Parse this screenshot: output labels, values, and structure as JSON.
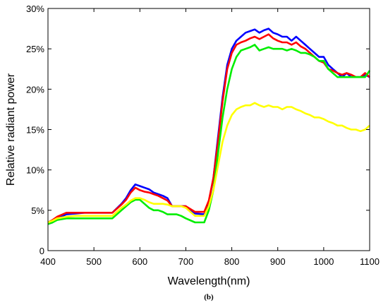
{
  "chart_data": {
    "type": "line",
    "xlabel": "Wavelength(nm)",
    "ylabel": "Relative radiant power",
    "caption": "(b)",
    "xlim": [
      400,
      1100
    ],
    "ylim": [
      0,
      30
    ],
    "xticks": [
      "400",
      "500",
      "600",
      "700",
      "800",
      "900",
      "1000",
      "1100"
    ],
    "yticks": [
      "0",
      "5%",
      "10%",
      "15%",
      "20%",
      "25%",
      "30%"
    ],
    "grid": false,
    "legend": "none",
    "series": [
      {
        "color": "#0000ff",
        "x": [
          400,
          410,
          420,
          440,
          460,
          480,
          500,
          520,
          540,
          560,
          570,
          580,
          590,
          600,
          610,
          620,
          630,
          640,
          650,
          660,
          670,
          680,
          690,
          700,
          720,
          740,
          750,
          760,
          770,
          780,
          790,
          800,
          810,
          820,
          830,
          840,
          850,
          860,
          870,
          880,
          890,
          900,
          910,
          920,
          930,
          940,
          950,
          960,
          970,
          980,
          990,
          1000,
          1010,
          1020,
          1030,
          1040,
          1050,
          1060,
          1070,
          1080,
          1090,
          1100
        ],
        "y": [
          3.3,
          3.5,
          4.0,
          4.5,
          4.6,
          4.7,
          4.7,
          4.7,
          4.7,
          5.8,
          6.5,
          7.5,
          8.2,
          8.0,
          7.8,
          7.6,
          7.2,
          7.0,
          6.8,
          6.5,
          5.5,
          5.5,
          5.5,
          5.5,
          4.6,
          4.5,
          6.0,
          9.0,
          14.0,
          19.0,
          23.0,
          25.0,
          26.0,
          26.5,
          27.0,
          27.2,
          27.4,
          27.0,
          27.3,
          27.5,
          27.0,
          26.8,
          26.5,
          26.5,
          26.0,
          26.5,
          26.0,
          25.5,
          25.0,
          24.5,
          24.0,
          24.0,
          23.0,
          22.5,
          22.0,
          21.5,
          22.0,
          21.5,
          21.5,
          21.5,
          21.8,
          21.5
        ]
      },
      {
        "color": "#ff0000",
        "x": [
          400,
          410,
          420,
          440,
          460,
          480,
          500,
          520,
          540,
          560,
          570,
          580,
          590,
          600,
          610,
          620,
          630,
          640,
          650,
          660,
          670,
          680,
          690,
          700,
          720,
          740,
          750,
          760,
          770,
          780,
          790,
          800,
          810,
          820,
          830,
          840,
          850,
          860,
          870,
          880,
          890,
          900,
          910,
          920,
          930,
          940,
          950,
          960,
          970,
          980,
          990,
          1000,
          1010,
          1020,
          1030,
          1040,
          1050,
          1060,
          1070,
          1080,
          1090,
          1100
        ],
        "y": [
          3.5,
          3.8,
          4.2,
          4.7,
          4.7,
          4.7,
          4.7,
          4.7,
          4.7,
          5.7,
          6.3,
          7.2,
          7.8,
          7.5,
          7.3,
          7.2,
          7.0,
          6.8,
          6.5,
          6.2,
          5.5,
          5.5,
          5.5,
          5.5,
          4.8,
          4.8,
          6.2,
          9.0,
          13.5,
          18.5,
          22.5,
          24.5,
          25.5,
          25.8,
          26.0,
          26.3,
          26.5,
          26.2,
          26.5,
          26.8,
          26.3,
          26.0,
          25.8,
          25.8,
          25.5,
          25.8,
          25.3,
          25.0,
          24.5,
          24.0,
          23.5,
          23.3,
          22.5,
          22.3,
          22.0,
          21.8,
          22.0,
          21.8,
          21.5,
          21.5,
          22.0,
          21.5
        ]
      },
      {
        "color": "#00ee00",
        "x": [
          400,
          410,
          420,
          440,
          460,
          480,
          500,
          520,
          540,
          560,
          570,
          580,
          590,
          600,
          610,
          620,
          630,
          640,
          650,
          660,
          670,
          680,
          690,
          700,
          720,
          740,
          750,
          760,
          770,
          780,
          790,
          800,
          810,
          820,
          830,
          840,
          850,
          860,
          870,
          880,
          890,
          900,
          910,
          920,
          930,
          940,
          950,
          960,
          970,
          980,
          990,
          1000,
          1010,
          1020,
          1030,
          1040,
          1050,
          1060,
          1070,
          1080,
          1090,
          1100
        ],
        "y": [
          3.3,
          3.5,
          3.8,
          4.0,
          4.0,
          4.0,
          4.0,
          4.0,
          4.0,
          5.0,
          5.5,
          6.0,
          6.3,
          6.3,
          5.8,
          5.3,
          5.0,
          5.0,
          4.8,
          4.5,
          4.5,
          4.5,
          4.3,
          4.0,
          3.5,
          3.5,
          5.0,
          7.5,
          12.0,
          16.5,
          20.0,
          22.5,
          24.0,
          24.8,
          25.0,
          25.2,
          25.5,
          24.8,
          25.0,
          25.2,
          25.0,
          25.0,
          25.0,
          24.8,
          25.0,
          24.8,
          24.5,
          24.5,
          24.3,
          24.0,
          23.5,
          23.5,
          22.5,
          22.0,
          21.5,
          21.5,
          21.5,
          21.5,
          21.5,
          21.5,
          21.5,
          22.3
        ]
      },
      {
        "color": "#ffff00",
        "x": [
          400,
          410,
          420,
          440,
          460,
          480,
          500,
          520,
          540,
          560,
          570,
          580,
          590,
          600,
          610,
          620,
          630,
          640,
          650,
          660,
          670,
          680,
          690,
          700,
          720,
          740,
          750,
          760,
          770,
          780,
          790,
          800,
          810,
          820,
          830,
          840,
          850,
          860,
          870,
          880,
          890,
          900,
          910,
          920,
          930,
          940,
          950,
          960,
          970,
          980,
          990,
          1000,
          1010,
          1020,
          1030,
          1040,
          1050,
          1060,
          1070,
          1080,
          1090,
          1100
        ],
        "y": [
          3.5,
          3.7,
          4.0,
          4.2,
          4.3,
          4.3,
          4.3,
          4.3,
          4.3,
          5.3,
          5.7,
          6.2,
          6.5,
          6.5,
          6.3,
          6.0,
          5.8,
          5.8,
          5.8,
          5.7,
          5.5,
          5.5,
          5.5,
          5.3,
          4.3,
          4.3,
          5.5,
          7.5,
          10.5,
          13.5,
          15.5,
          16.8,
          17.5,
          17.8,
          18.0,
          18.0,
          18.3,
          18.0,
          17.8,
          18.0,
          17.8,
          17.8,
          17.5,
          17.8,
          17.8,
          17.5,
          17.3,
          17.0,
          16.8,
          16.5,
          16.5,
          16.3,
          16.0,
          15.8,
          15.5,
          15.5,
          15.2,
          15.0,
          15.0,
          14.8,
          15.0,
          15.5
        ]
      }
    ]
  }
}
